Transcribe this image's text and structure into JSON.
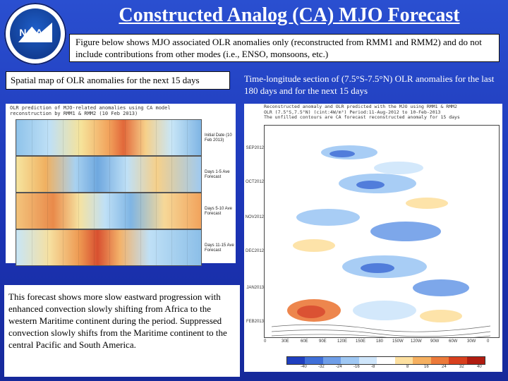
{
  "header": {
    "logo_text": "NOAA",
    "title": "Constructed Analog (CA) MJO Forecast",
    "note": "Figure below shows MJO associated OLR anomalies only (reconstructed from RMM1 and RMM2) and do not include contributions from other modes (i.e., ENSO, monsoons, etc.)"
  },
  "left": {
    "label": "Spatial map of OLR anomalies for the next 15 days",
    "figure_header": [
      "OLR prediction of MJO-related anomalies using CA model",
      "reconstruction by RMM1 & RMM2 (10 Feb 2013)"
    ],
    "panels": [
      {
        "label": "Initial Date (10 Feb 2013)"
      },
      {
        "label": "Days 1-5 Ave Forecast"
      },
      {
        "label": "Days 5-10 Ave Forecast"
      },
      {
        "label": "Days 11-15 Ave Forecast"
      }
    ],
    "description": "This forecast shows more slow eastward progression with enhanced convection slowly shifting from Africa to the western Maritime continent during the period. Suppressed convection slowly shifts from the Maritime continent to the central Pacific and South America."
  },
  "right": {
    "label": "Time-longitude section of (7.5°S-7.5°N) OLR anomalies for the last 180 days and for the next 15 days",
    "figure_header": [
      "Reconstructed anomaly and OLR predicted with the MJO using RMM1 & RMM2",
      "OLR (7.5°S,7.5°N) (cint:4W/m²) Period:11-Aug-2012 to 10-Feb-2013",
      "The unfilled contours are CA forecast reconstructed anomaly for 15 days"
    ],
    "y_labels": [
      "SEP2012",
      "OCT2012",
      "NOV2012",
      "DEC2012",
      "JAN2013",
      "FEB2013"
    ],
    "x_labels": [
      "0",
      "30E",
      "60E",
      "90E",
      "120E",
      "150E",
      "180",
      "150W",
      "120W",
      "90W",
      "60W",
      "30W",
      "0"
    ],
    "colorbar_labels": [
      "-40",
      "-32",
      "-24",
      "-16",
      "-8",
      "8",
      "16",
      "24",
      "32",
      "40"
    ],
    "colorbar_colors": [
      "#1f3fbf",
      "#3f6fd8",
      "#6f9ee8",
      "#9fc8f4",
      "#cfe6fb",
      "#ffffff",
      "#fde0a0",
      "#f6b060",
      "#ec7a3a",
      "#d8401e",
      "#b01c10"
    ]
  }
}
